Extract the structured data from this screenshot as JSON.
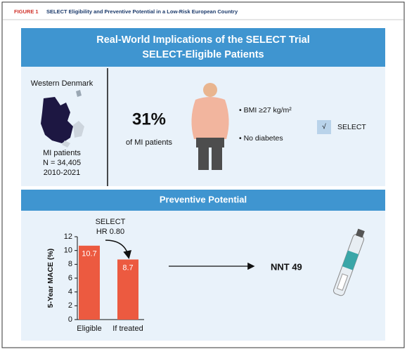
{
  "figure_label": "FIGURE 1",
  "figure_title": "SELECT Eligibility and Preventive Potential in a Low-Risk European Country",
  "banner": {
    "title": "Real-World Implications of the SELECT Trial",
    "subtitle": "SELECT-Eligible Patients"
  },
  "region": {
    "name": "Western Denmark",
    "lines": [
      "MI patients",
      "N = 34,405",
      "2010-2021"
    ]
  },
  "share": {
    "percent": "31%",
    "caption": "of MI patients"
  },
  "criteria": [
    "• BMI ≥27 kg/m²",
    "• No diabetes"
  ],
  "select": {
    "check": "√",
    "label": "SELECT"
  },
  "section2_title": "Preventive Potential",
  "chart_data": {
    "type": "bar",
    "ylabel": "5-Year MACE (%)",
    "categories": [
      "Eligible",
      "If treated"
    ],
    "values": [
      10.7,
      8.7
    ],
    "color": "#ec5a40",
    "ylim": [
      0,
      12
    ],
    "yticks": [
      0,
      2,
      4,
      6,
      8,
      10,
      12
    ],
    "annotation": [
      "SELECT",
      "HR 0.80"
    ]
  },
  "nnt": "NNT 49"
}
